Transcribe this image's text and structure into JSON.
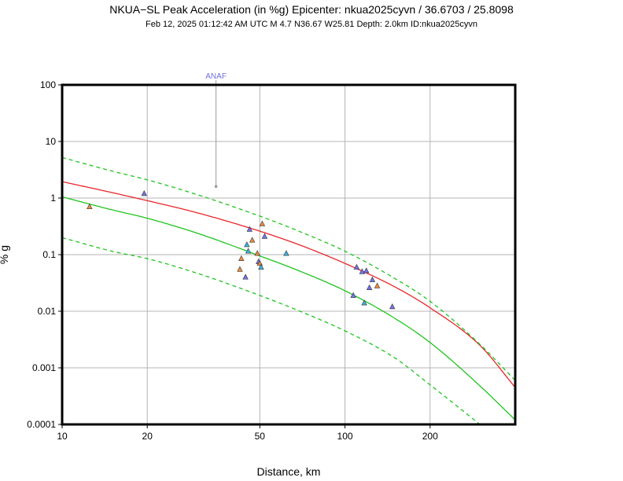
{
  "header": {
    "title": "NKUA−SL Peak Acceleration (in %g) Epicenter: nkua2025cyvn / 36.6703 / 25.8098",
    "subtitle": "Feb 12, 2025 01:12:42 AM UTC   M 4.7   N36.67 W25.81   Depth: 2.0km   ID:nkua2025cyvn"
  },
  "chart_data": {
    "type": "scatter",
    "xlabel": "Distance, km",
    "ylabel": "% g",
    "xscale": "log",
    "yscale": "log",
    "xlim": [
      10,
      400
    ],
    "ylim": [
      0.0001,
      100
    ],
    "grid": true,
    "x_ticks": [
      10,
      20,
      50,
      100,
      200
    ],
    "x_tick_labels": [
      "10",
      "20",
      "50",
      "100",
      "200"
    ],
    "y_ticks": [
      0.0001,
      0.001,
      0.01,
      0.1,
      1,
      10,
      100
    ],
    "y_tick_labels": [
      "0.0001",
      "0.001",
      "0.01",
      "0.1",
      "1",
      "10",
      "100"
    ],
    "colors": {
      "median_curve": "#e8262a",
      "fit_curve": "#1fc41f",
      "fit_bounds": "#1fc41f",
      "blue_station": "#7373ee",
      "orange_station": "#f08a3c",
      "cyan_station": "#3cb3e0",
      "flagged_station": "#999999",
      "flagged_label": "#6f6fe0"
    },
    "curves": [
      {
        "id": "median",
        "color": "#e8262a",
        "dash": false,
        "x": [
          10,
          15,
          20,
          30,
          50,
          70,
          100,
          150,
          200,
          300,
          400
        ],
        "y": [
          1.95,
          1.25,
          0.9,
          0.55,
          0.26,
          0.145,
          0.07,
          0.027,
          0.0115,
          0.0025,
          0.00045
        ]
      },
      {
        "id": "fit",
        "color": "#1fc41f",
        "dash": false,
        "x": [
          10,
          15,
          20,
          30,
          50,
          70,
          100,
          150,
          200,
          300,
          400
        ],
        "y": [
          1.05,
          0.62,
          0.44,
          0.24,
          0.095,
          0.05,
          0.023,
          0.0075,
          0.0028,
          0.00048,
          0.00012
        ]
      },
      {
        "id": "fit-upper",
        "color": "#1fc41f",
        "dash": true,
        "x": [
          10,
          15,
          20,
          30,
          50,
          70,
          100,
          150,
          200,
          300,
          400
        ],
        "y": [
          5.2,
          3.0,
          2.1,
          1.15,
          0.48,
          0.25,
          0.115,
          0.038,
          0.015,
          0.0026,
          0.0006
        ]
      },
      {
        "id": "fit-lower",
        "color": "#1fc41f",
        "dash": true,
        "x": [
          10,
          15,
          20,
          30,
          50,
          70,
          100,
          150,
          200,
          300
        ],
        "y": [
          0.2,
          0.115,
          0.085,
          0.047,
          0.019,
          0.0098,
          0.0045,
          0.0015,
          0.0005,
          0.0001
        ]
      }
    ],
    "stations": [
      {
        "x": 12.5,
        "y": 0.7,
        "color": "#f08a3c"
      },
      {
        "x": 19.5,
        "y": 1.2,
        "color": "#7373ee"
      },
      {
        "x": 42.5,
        "y": 0.055,
        "color": "#f08a3c"
      },
      {
        "x": 43.0,
        "y": 0.085,
        "color": "#f08a3c"
      },
      {
        "x": 44.5,
        "y": 0.04,
        "color": "#7373ee"
      },
      {
        "x": 45.0,
        "y": 0.15,
        "color": "#3cb3e0"
      },
      {
        "x": 45.5,
        "y": 0.115,
        "color": "#3cb3e0"
      },
      {
        "x": 46.0,
        "y": 0.28,
        "color": "#7373ee"
      },
      {
        "x": 47.0,
        "y": 0.18,
        "color": "#f08a3c"
      },
      {
        "x": 49.0,
        "y": 0.105,
        "color": "#f08a3c"
      },
      {
        "x": 49.5,
        "y": 0.075,
        "color": "#7373ee"
      },
      {
        "x": 50.0,
        "y": 0.07,
        "color": "#f08a3c"
      },
      {
        "x": 50.5,
        "y": 0.06,
        "color": "#3cb3e0"
      },
      {
        "x": 51.0,
        "y": 0.35,
        "color": "#f08a3c"
      },
      {
        "x": 52.0,
        "y": 0.21,
        "color": "#7373ee"
      },
      {
        "x": 62.0,
        "y": 0.105,
        "color": "#3cb3e0"
      },
      {
        "x": 107,
        "y": 0.019,
        "color": "#7373ee"
      },
      {
        "x": 110,
        "y": 0.06,
        "color": "#7373ee"
      },
      {
        "x": 115,
        "y": 0.05,
        "color": "#7373ee"
      },
      {
        "x": 117,
        "y": 0.014,
        "color": "#3cb3e0"
      },
      {
        "x": 119,
        "y": 0.052,
        "color": "#7373ee"
      },
      {
        "x": 122,
        "y": 0.026,
        "color": "#7373ee"
      },
      {
        "x": 125,
        "y": 0.036,
        "color": "#7373ee"
      },
      {
        "x": 130,
        "y": 0.028,
        "color": "#f08a3c"
      },
      {
        "x": 147,
        "y": 0.012,
        "color": "#7373ee"
      }
    ],
    "flagged_stations": [
      {
        "label": "ANAF",
        "x": 35,
        "y": 1.6,
        "color": "#999999"
      }
    ]
  }
}
